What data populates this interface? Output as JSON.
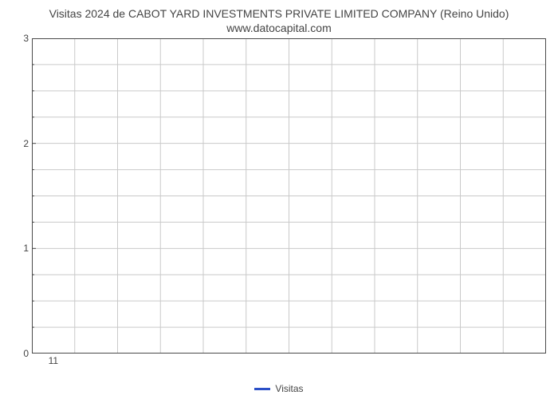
{
  "chart": {
    "type": "line",
    "title": "Visitas 2024 de CABOT YARD INVESTMENTS PRIVATE LIMITED COMPANY (Reino Unido) www.datocapital.com",
    "title_fontsize": 14,
    "title_color": "#444444",
    "background_color": "#ffffff",
    "plot_border_color": "#4a4a4a",
    "grid_color": "#c9c9c9",
    "grid_line_width": 1,
    "y_axis": {
      "min": 0,
      "max": 3,
      "major_ticks": [
        0,
        1,
        2,
        3
      ],
      "minor_ticks": [
        0.25,
        0.5,
        0.75,
        1.25,
        1.5,
        1.75,
        2.25,
        2.5,
        2.75
      ],
      "tick_label_fontsize": 12,
      "tick_label_color": "#444444"
    },
    "x_axis": {
      "categories": [
        "11"
      ],
      "n_columns": 12,
      "tick_label_fontsize": 12,
      "tick_label_color": "#444444"
    },
    "series": [
      {
        "name": "Visitas",
        "color": "#2b50c7",
        "line_width": 3,
        "values": []
      }
    ],
    "legend": {
      "position": "bottom-center",
      "fontsize": 12,
      "text_color": "#444444"
    }
  }
}
